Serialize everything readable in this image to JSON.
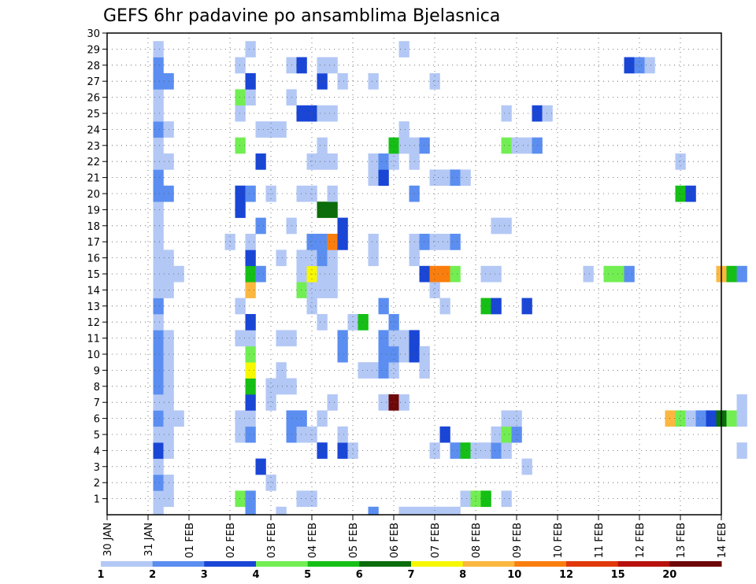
{
  "chart_data": {
    "type": "heatmap",
    "title": "GEFS 6hr padavine po ansamblima Bjelasnica",
    "xlabel": "",
    "ylabel": "",
    "x_tick_labels": [
      "30 JAN",
      "31 JAN",
      "01 FEB",
      "02 FEB",
      "03 FEB",
      "04 FEB",
      "05 FEB",
      "06 FEB",
      "07 FEB",
      "08 FEB",
      "09 FEB",
      "10 FEB",
      "11 FEB",
      "12 FEB",
      "13 FEB",
      "14 FEB"
    ],
    "xlim_days": [
      0,
      15
    ],
    "y_tick_labels": [
      1,
      2,
      3,
      4,
      5,
      6,
      7,
      8,
      9,
      10,
      11,
      12,
      13,
      14,
      15,
      16,
      17,
      18,
      19,
      20,
      21,
      22,
      23,
      24,
      25,
      26,
      27,
      28,
      29,
      30
    ],
    "ylim": [
      0,
      30
    ],
    "grid": true,
    "colorbar": {
      "levels": [
        1,
        2,
        3,
        4,
        5,
        6,
        7,
        8,
        10,
        12,
        15,
        20
      ],
      "colors": [
        "#b3c8f5",
        "#5b8ef0",
        "#1a46d6",
        "#72ee53",
        "#15bf15",
        "#0b6d0b",
        "#f7f700",
        "#fbb740",
        "#fa7e0e",
        "#e0380a",
        "#b8110d",
        "#6e0808"
      ]
    },
    "step_per_cell_days": 0.25,
    "cells": [
      [
        1.25,
        0,
        1
      ],
      [
        1.25,
        1,
        1
      ],
      [
        1.25,
        2,
        2
      ],
      [
        1.25,
        3,
        1
      ],
      [
        1.25,
        4,
        3
      ],
      [
        1.25,
        5,
        1
      ],
      [
        1.25,
        6,
        2
      ],
      [
        1.25,
        7,
        1
      ],
      [
        1.25,
        8,
        2
      ],
      [
        1.25,
        9,
        2
      ],
      [
        1.25,
        10,
        2
      ],
      [
        1.25,
        11,
        2
      ],
      [
        1.25,
        12,
        1
      ],
      [
        1.25,
        13,
        2
      ],
      [
        1.25,
        14,
        1
      ],
      [
        1.25,
        15,
        1
      ],
      [
        1.25,
        16,
        1
      ],
      [
        1.25,
        17,
        1
      ],
      [
        1.25,
        18,
        1
      ],
      [
        1.25,
        19,
        1
      ],
      [
        1.25,
        20,
        2
      ],
      [
        1.25,
        21,
        2
      ],
      [
        1.25,
        22,
        1
      ],
      [
        1.25,
        23,
        1
      ],
      [
        1.25,
        24,
        2
      ],
      [
        1.25,
        25,
        1
      ],
      [
        1.25,
        26,
        1
      ],
      [
        1.25,
        27,
        2
      ],
      [
        1.25,
        28,
        2
      ],
      [
        1.25,
        29,
        1
      ],
      [
        1.5,
        1,
        1
      ],
      [
        1.5,
        2,
        1
      ],
      [
        1.5,
        4,
        1
      ],
      [
        1.5,
        5,
        1
      ],
      [
        1.5,
        6,
        1
      ],
      [
        1.5,
        7,
        1
      ],
      [
        1.5,
        8,
        1
      ],
      [
        1.5,
        9,
        1
      ],
      [
        1.5,
        10,
        1
      ],
      [
        1.5,
        11,
        1
      ],
      [
        1.5,
        14,
        1
      ],
      [
        1.5,
        15,
        1
      ],
      [
        1.5,
        16,
        1
      ],
      [
        1.5,
        20,
        2
      ],
      [
        1.5,
        22,
        1
      ],
      [
        1.5,
        24,
        1
      ],
      [
        1.5,
        27,
        2
      ],
      [
        1.75,
        6,
        1
      ],
      [
        1.75,
        15,
        1
      ],
      [
        3,
        17,
        1
      ],
      [
        3.25,
        1,
        4
      ],
      [
        3.25,
        5,
        1
      ],
      [
        3.25,
        6,
        1
      ],
      [
        3.25,
        11,
        1
      ],
      [
        3.25,
        13,
        1
      ],
      [
        3.25,
        19,
        3
      ],
      [
        3.25,
        20,
        3
      ],
      [
        3.25,
        23,
        4
      ],
      [
        3.25,
        25,
        1
      ],
      [
        3.25,
        26,
        4
      ],
      [
        3.25,
        28,
        1
      ],
      [
        3.5,
        0,
        2
      ],
      [
        3.5,
        1,
        2
      ],
      [
        3.5,
        5,
        2
      ],
      [
        3.5,
        6,
        1
      ],
      [
        3.5,
        7,
        3
      ],
      [
        3.5,
        8,
        5
      ],
      [
        3.5,
        9,
        7
      ],
      [
        3.5,
        10,
        4
      ],
      [
        3.5,
        11,
        1
      ],
      [
        3.5,
        12,
        3
      ],
      [
        3.5,
        14,
        8
      ],
      [
        3.5,
        15,
        5
      ],
      [
        3.5,
        16,
        3
      ],
      [
        3.5,
        17,
        1
      ],
      [
        3.5,
        20,
        2
      ],
      [
        3.5,
        26,
        1
      ],
      [
        3.5,
        27,
        3
      ],
      [
        3.5,
        29,
        1
      ],
      [
        3.75,
        3,
        3
      ],
      [
        3.75,
        15,
        2
      ],
      [
        3.75,
        18,
        2
      ],
      [
        3.75,
        22,
        3
      ],
      [
        3.75,
        24,
        1
      ],
      [
        4,
        2,
        1
      ],
      [
        4,
        7,
        1
      ],
      [
        4,
        8,
        1
      ],
      [
        4,
        20,
        1
      ],
      [
        4,
        24,
        1
      ],
      [
        4.25,
        0,
        1
      ],
      [
        4.25,
        8,
        1
      ],
      [
        4.25,
        9,
        1
      ],
      [
        4.25,
        11,
        1
      ],
      [
        4.25,
        16,
        1
      ],
      [
        4.25,
        24,
        1
      ],
      [
        4.5,
        5,
        2
      ],
      [
        4.5,
        6,
        2
      ],
      [
        4.5,
        8,
        1
      ],
      [
        4.5,
        11,
        1
      ],
      [
        4.5,
        18,
        1
      ],
      [
        4.5,
        26,
        1
      ],
      [
        4.5,
        28,
        1
      ],
      [
        4.75,
        1,
        1
      ],
      [
        4.75,
        5,
        1
      ],
      [
        4.75,
        6,
        2
      ],
      [
        4.75,
        14,
        4
      ],
      [
        4.75,
        15,
        1
      ],
      [
        4.75,
        16,
        1
      ],
      [
        4.75,
        20,
        1
      ],
      [
        4.75,
        25,
        3
      ],
      [
        4.75,
        28,
        3
      ],
      [
        5,
        1,
        1
      ],
      [
        5,
        5,
        1
      ],
      [
        5,
        13,
        1
      ],
      [
        5,
        14,
        1
      ],
      [
        5,
        15,
        7
      ],
      [
        5,
        16,
        1
      ],
      [
        5,
        17,
        2
      ],
      [
        5,
        20,
        1
      ],
      [
        5,
        22,
        1
      ],
      [
        5,
        25,
        3
      ],
      [
        5.25,
        -1,
        1
      ],
      [
        5.25,
        4,
        3
      ],
      [
        5.25,
        6,
        1
      ],
      [
        5.25,
        12,
        1
      ],
      [
        5.25,
        14,
        1
      ],
      [
        5.25,
        15,
        1
      ],
      [
        5.25,
        16,
        2
      ],
      [
        5.25,
        17,
        2
      ],
      [
        5.25,
        19,
        6
      ],
      [
        5.25,
        22,
        1
      ],
      [
        5.25,
        23,
        1
      ],
      [
        5.25,
        25,
        1
      ],
      [
        5.25,
        27,
        3
      ],
      [
        5.25,
        28,
        1
      ],
      [
        5.5,
        -1,
        1
      ],
      [
        5.5,
        7,
        1
      ],
      [
        5.5,
        14,
        1
      ],
      [
        5.5,
        15,
        1
      ],
      [
        5.5,
        16,
        1
      ],
      [
        5.5,
        17,
        9
      ],
      [
        5.5,
        19,
        6
      ],
      [
        5.5,
        20,
        1
      ],
      [
        5.5,
        22,
        1
      ],
      [
        5.5,
        25,
        1
      ],
      [
        5.5,
        28,
        1
      ],
      [
        5.75,
        4,
        3
      ],
      [
        5.75,
        5,
        1
      ],
      [
        5.75,
        10,
        2
      ],
      [
        5.75,
        11,
        2
      ],
      [
        5.75,
        17,
        3
      ],
      [
        5.75,
        18,
        3
      ],
      [
        5.75,
        27,
        1
      ],
      [
        6,
        4,
        1
      ],
      [
        6,
        12,
        1
      ],
      [
        6.25,
        9,
        1
      ],
      [
        6.25,
        12,
        5
      ],
      [
        6.5,
        0,
        2
      ],
      [
        6.5,
        9,
        1
      ],
      [
        6.5,
        16,
        1
      ],
      [
        6.5,
        17,
        1
      ],
      [
        6.5,
        21,
        1
      ],
      [
        6.5,
        22,
        1
      ],
      [
        6.5,
        27,
        1
      ],
      [
        6.75,
        7,
        1
      ],
      [
        6.75,
        9,
        2
      ],
      [
        6.75,
        10,
        2
      ],
      [
        6.75,
        11,
        2
      ],
      [
        6.75,
        13,
        2
      ],
      [
        6.75,
        21,
        3
      ],
      [
        6.75,
        22,
        2
      ],
      [
        7,
        7,
        12
      ],
      [
        7,
        9,
        1
      ],
      [
        7,
        10,
        2
      ],
      [
        7,
        11,
        1
      ],
      [
        7,
        12,
        2
      ],
      [
        7,
        22,
        1
      ],
      [
        7,
        23,
        5
      ],
      [
        7.25,
        -1,
        2
      ],
      [
        7.25,
        0,
        1
      ],
      [
        7.25,
        7,
        1
      ],
      [
        7.25,
        10,
        1
      ],
      [
        7.25,
        11,
        1
      ],
      [
        7.25,
        23,
        1
      ],
      [
        7.25,
        24,
        1
      ],
      [
        7.25,
        29,
        1
      ],
      [
        7.5,
        0,
        1
      ],
      [
        7.5,
        10,
        3
      ],
      [
        7.5,
        11,
        3
      ],
      [
        7.5,
        16,
        1
      ],
      [
        7.5,
        17,
        1
      ],
      [
        7.5,
        20,
        2
      ],
      [
        7.5,
        22,
        1
      ],
      [
        7.5,
        23,
        1
      ],
      [
        7.75,
        0,
        1
      ],
      [
        7.75,
        9,
        1
      ],
      [
        7.75,
        10,
        1
      ],
      [
        7.75,
        15,
        3
      ],
      [
        7.75,
        17,
        2
      ],
      [
        7.75,
        23,
        2
      ],
      [
        8,
        0,
        1
      ],
      [
        8,
        4,
        1
      ],
      [
        8,
        14,
        1
      ],
      [
        8,
        15,
        9
      ],
      [
        8,
        17,
        1
      ],
      [
        8,
        21,
        1
      ],
      [
        8,
        27,
        1
      ],
      [
        8.25,
        0,
        1
      ],
      [
        8.25,
        5,
        3
      ],
      [
        8.25,
        13,
        1
      ],
      [
        8.25,
        15,
        9
      ],
      [
        8.25,
        17,
        1
      ],
      [
        8.25,
        21,
        1
      ],
      [
        8.5,
        0,
        1
      ],
      [
        8.5,
        4,
        2
      ],
      [
        8.5,
        15,
        4
      ],
      [
        8.5,
        17,
        2
      ],
      [
        8.5,
        21,
        2
      ],
      [
        8.75,
        1,
        1
      ],
      [
        8.75,
        4,
        5
      ],
      [
        8.75,
        21,
        1
      ],
      [
        9,
        1,
        4
      ],
      [
        9,
        4,
        1
      ],
      [
        9.25,
        1,
        5
      ],
      [
        9.25,
        4,
        1
      ],
      [
        9.25,
        13,
        5
      ],
      [
        9.25,
        15,
        1
      ],
      [
        9.5,
        4,
        2
      ],
      [
        9.5,
        5,
        1
      ],
      [
        9.5,
        13,
        3
      ],
      [
        9.5,
        15,
        1
      ],
      [
        9.5,
        18,
        1
      ],
      [
        9.75,
        1,
        1
      ],
      [
        9.75,
        4,
        1
      ],
      [
        9.75,
        5,
        4
      ],
      [
        9.75,
        6,
        1
      ],
      [
        9.75,
        18,
        1
      ],
      [
        9.75,
        23,
        4
      ],
      [
        9.75,
        25,
        1
      ],
      [
        10,
        5,
        2
      ],
      [
        10,
        6,
        1
      ],
      [
        10,
        23,
        1
      ],
      [
        10.25,
        3,
        1
      ],
      [
        10.25,
        13,
        3
      ],
      [
        10.25,
        23,
        1
      ],
      [
        10.5,
        23,
        2
      ],
      [
        10.5,
        25,
        3
      ],
      [
        10.75,
        25,
        1
      ],
      [
        11.75,
        15,
        1
      ],
      [
        12.25,
        15,
        4
      ],
      [
        12.5,
        15,
        4
      ],
      [
        12.75,
        15,
        2
      ],
      [
        12.75,
        28,
        3
      ],
      [
        13,
        28,
        2
      ],
      [
        13.25,
        28,
        1
      ],
      [
        13.75,
        6,
        8
      ],
      [
        14,
        6,
        4
      ],
      [
        14,
        20,
        5
      ],
      [
        14,
        22,
        1
      ],
      [
        14.25,
        -1,
        1
      ],
      [
        14.25,
        6,
        1
      ],
      [
        14.25,
        20,
        3
      ],
      [
        14.5,
        6,
        2
      ],
      [
        14.75,
        -1,
        3
      ],
      [
        14.75,
        6,
        3
      ],
      [
        15,
        -1,
        5
      ],
      [
        15,
        6,
        6
      ],
      [
        15,
        15,
        8
      ],
      [
        15.25,
        -1,
        4
      ],
      [
        15.25,
        6,
        4
      ],
      [
        15.25,
        15,
        5
      ],
      [
        15.5,
        -1,
        10
      ],
      [
        15.5,
        4,
        1
      ],
      [
        15.5,
        6,
        1
      ],
      [
        15.5,
        7,
        1
      ],
      [
        15.5,
        15,
        2
      ]
    ]
  }
}
